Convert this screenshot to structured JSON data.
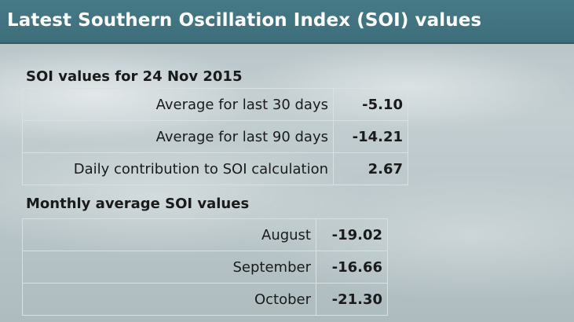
{
  "header": {
    "title": "Latest Southern Oscillation Index (SOI) values"
  },
  "soi_section": {
    "title": "SOI values for 24 Nov 2015",
    "rows": [
      {
        "label": "Average for last 30 days",
        "value": "-5.10"
      },
      {
        "label": "Average for last 90 days",
        "value": "-14.21"
      },
      {
        "label": "Daily contribution to SOI calculation",
        "value": "2.67"
      }
    ]
  },
  "monthly_section": {
    "title": "Monthly average SOI values",
    "rows": [
      {
        "label": "August",
        "value": "-19.02"
      },
      {
        "label": "September",
        "value": "-16.66"
      },
      {
        "label": "October",
        "value": "-21.30"
      }
    ]
  },
  "colors": {
    "header_bg": "#3f717d",
    "header_text": "#ffffff",
    "text": "#1a1a1a"
  }
}
